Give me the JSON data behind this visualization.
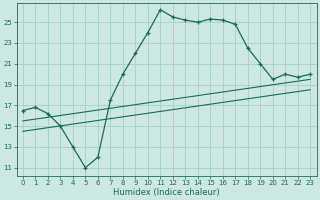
{
  "xlabel": "Humidex (Indice chaleur)",
  "bg_color": "#cce8e0",
  "grid_color": "#a8d4ca",
  "line_color": "#1a6b58",
  "x_ticks": [
    0,
    1,
    2,
    3,
    4,
    5,
    6,
    7,
    8,
    9,
    10,
    11,
    12,
    13,
    14,
    15,
    16,
    17,
    18,
    19,
    20,
    21,
    22,
    23
  ],
  "y_ticks": [
    11,
    13,
    15,
    17,
    19,
    21,
    23,
    25
  ],
  "ylim": [
    10.2,
    26.8
  ],
  "xlim": [
    -0.5,
    23.5
  ],
  "main_line_x": [
    0,
    1,
    2,
    3,
    4,
    5,
    6,
    7,
    8,
    9,
    10,
    11,
    12,
    13,
    14,
    15,
    16,
    17,
    18,
    19,
    20,
    21,
    22,
    23
  ],
  "main_line_y": [
    16.5,
    16.8,
    16.2,
    15.0,
    13.0,
    11.0,
    12.0,
    17.5,
    20.0,
    22.0,
    24.0,
    26.2,
    25.5,
    25.2,
    25.0,
    25.3,
    25.2,
    24.8,
    22.5,
    21.0,
    19.5,
    20.0,
    19.7,
    20.0
  ],
  "line2_x": [
    0,
    23
  ],
  "line2_y": [
    15.5,
    19.5
  ],
  "line3_x": [
    0,
    23
  ],
  "line3_y": [
    14.5,
    18.5
  ],
  "tick_fontsize": 5.0,
  "xlabel_fontsize": 6.0
}
